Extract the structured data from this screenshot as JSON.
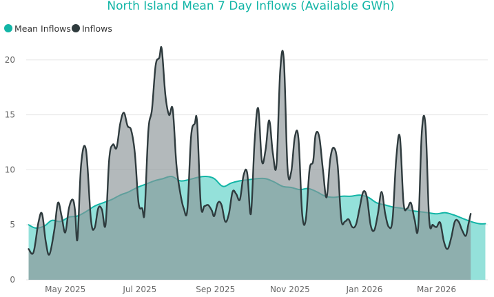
{
  "chart_data": {
    "type": "area",
    "title": "North Island Mean 7 Day Inflows (Available GWh)",
    "xlabel": "",
    "ylabel": "",
    "ylim": [
      0,
      22
    ],
    "yticks": [
      0,
      5,
      10,
      15,
      20
    ],
    "xlim": [
      "2025-03-30",
      "2026-04-12"
    ],
    "x_ticks": [
      {
        "date": "2025-05-01",
        "label": "May 2025"
      },
      {
        "date": "2025-07-01",
        "label": "Jul 2025"
      },
      {
        "date": "2025-09-01",
        "label": "Sep 2025"
      },
      {
        "date": "2025-11-01",
        "label": "Nov 2025"
      },
      {
        "date": "2026-01-01",
        "label": "Jan 2026"
      },
      {
        "date": "2026-03-01",
        "label": "Mar 2026"
      }
    ],
    "grid": true,
    "legend_position": "top-left",
    "series": [
      {
        "name": "Mean Inflows",
        "fill": "#8EDFD8",
        "stroke": "#12B5A6",
        "points": [
          [
            "2025-04-01",
            5.0
          ],
          [
            "2025-04-07",
            4.7
          ],
          [
            "2025-04-14",
            4.9
          ],
          [
            "2025-04-20",
            5.4
          ],
          [
            "2025-04-27",
            5.3
          ],
          [
            "2025-05-04",
            5.7
          ],
          [
            "2025-05-11",
            5.8
          ],
          [
            "2025-05-18",
            6.2
          ],
          [
            "2025-05-25",
            6.7
          ],
          [
            "2025-06-01",
            7.0
          ],
          [
            "2025-06-08",
            7.3
          ],
          [
            "2025-06-15",
            7.7
          ],
          [
            "2025-06-22",
            8.0
          ],
          [
            "2025-06-29",
            8.4
          ],
          [
            "2025-07-06",
            8.7
          ],
          [
            "2025-07-13",
            9.0
          ],
          [
            "2025-07-20",
            9.2
          ],
          [
            "2025-07-27",
            9.4
          ],
          [
            "2025-08-03",
            9.0
          ],
          [
            "2025-08-10",
            9.1
          ],
          [
            "2025-08-17",
            9.3
          ],
          [
            "2025-08-24",
            9.4
          ],
          [
            "2025-08-31",
            9.2
          ],
          [
            "2025-09-07",
            8.5
          ],
          [
            "2025-09-14",
            8.8
          ],
          [
            "2025-09-21",
            9.0
          ],
          [
            "2025-09-28",
            9.1
          ],
          [
            "2025-10-05",
            9.2
          ],
          [
            "2025-10-12",
            9.2
          ],
          [
            "2025-10-19",
            8.9
          ],
          [
            "2025-10-26",
            8.5
          ],
          [
            "2025-11-02",
            8.4
          ],
          [
            "2025-11-09",
            8.2
          ],
          [
            "2025-11-16",
            8.3
          ],
          [
            "2025-11-23",
            8.0
          ],
          [
            "2025-11-30",
            7.6
          ],
          [
            "2025-12-07",
            7.5
          ],
          [
            "2025-12-14",
            7.6
          ],
          [
            "2025-12-21",
            7.6
          ],
          [
            "2025-12-28",
            7.7
          ],
          [
            "2026-01-04",
            7.5
          ],
          [
            "2026-01-11",
            7.0
          ],
          [
            "2026-01-18",
            6.8
          ],
          [
            "2026-01-25",
            6.6
          ],
          [
            "2026-02-01",
            6.5
          ],
          [
            "2026-02-08",
            6.3
          ],
          [
            "2026-02-15",
            6.2
          ],
          [
            "2026-02-22",
            6.1
          ],
          [
            "2026-03-01",
            6.0
          ],
          [
            "2026-03-08",
            6.1
          ],
          [
            "2026-03-15",
            5.9
          ],
          [
            "2026-03-22",
            5.6
          ],
          [
            "2026-03-29",
            5.3
          ],
          [
            "2026-04-05",
            5.1
          ],
          [
            "2026-04-10",
            5.1
          ]
        ]
      },
      {
        "name": "Inflows",
        "fill": "#8A9497",
        "stroke": "#2F3B3E",
        "points": [
          [
            "2025-04-01",
            2.8
          ],
          [
            "2025-04-05",
            2.5
          ],
          [
            "2025-04-09",
            5.2
          ],
          [
            "2025-04-12",
            6.0
          ],
          [
            "2025-04-15",
            3.5
          ],
          [
            "2025-04-18",
            2.3
          ],
          [
            "2025-04-22",
            4.5
          ],
          [
            "2025-04-25",
            7.0
          ],
          [
            "2025-04-28",
            5.8
          ],
          [
            "2025-05-01",
            4.3
          ],
          [
            "2025-05-04",
            6.5
          ],
          [
            "2025-05-07",
            7.3
          ],
          [
            "2025-05-09",
            6.3
          ],
          [
            "2025-05-11",
            3.7
          ],
          [
            "2025-05-14",
            10.5
          ],
          [
            "2025-05-18",
            11.8
          ],
          [
            "2025-05-22",
            5.5
          ],
          [
            "2025-05-25",
            4.7
          ],
          [
            "2025-05-28",
            6.5
          ],
          [
            "2025-05-31",
            6.4
          ],
          [
            "2025-06-03",
            5.0
          ],
          [
            "2025-06-06",
            11.0
          ],
          [
            "2025-06-09",
            12.3
          ],
          [
            "2025-06-12",
            12.0
          ],
          [
            "2025-06-15",
            14.2
          ],
          [
            "2025-06-18",
            15.2
          ],
          [
            "2025-06-21",
            14.0
          ],
          [
            "2025-06-24",
            13.6
          ],
          [
            "2025-06-27",
            11.5
          ],
          [
            "2025-06-30",
            7.0
          ],
          [
            "2025-07-03",
            6.5
          ],
          [
            "2025-07-05",
            6.2
          ],
          [
            "2025-07-08",
            13.5
          ],
          [
            "2025-07-11",
            15.5
          ],
          [
            "2025-07-14",
            19.5
          ],
          [
            "2025-07-17",
            20.2
          ],
          [
            "2025-07-19",
            21.0
          ],
          [
            "2025-07-22",
            16.8
          ],
          [
            "2025-07-25",
            15.0
          ],
          [
            "2025-07-28",
            15.5
          ],
          [
            "2025-07-31",
            10.5
          ],
          [
            "2025-08-03",
            8.0
          ],
          [
            "2025-08-06",
            6.5
          ],
          [
            "2025-08-09",
            6.4
          ],
          [
            "2025-08-12",
            13.0
          ],
          [
            "2025-08-15",
            14.2
          ],
          [
            "2025-08-17",
            14.3
          ],
          [
            "2025-08-20",
            6.8
          ],
          [
            "2025-08-23",
            6.7
          ],
          [
            "2025-08-26",
            6.8
          ],
          [
            "2025-08-29",
            6.3
          ],
          [
            "2025-08-31",
            5.8
          ],
          [
            "2025-09-03",
            7.0
          ],
          [
            "2025-09-06",
            6.8
          ],
          [
            "2025-09-09",
            5.3
          ],
          [
            "2025-09-12",
            6.0
          ],
          [
            "2025-09-15",
            8.0
          ],
          [
            "2025-09-18",
            7.8
          ],
          [
            "2025-09-21",
            7.3
          ],
          [
            "2025-09-24",
            9.5
          ],
          [
            "2025-09-27",
            9.7
          ],
          [
            "2025-09-30",
            6.0
          ],
          [
            "2025-10-03",
            12.5
          ],
          [
            "2025-10-06",
            15.6
          ],
          [
            "2025-10-09",
            10.8
          ],
          [
            "2025-10-12",
            11.8
          ],
          [
            "2025-10-15",
            14.5
          ],
          [
            "2025-10-18",
            11.5
          ],
          [
            "2025-10-21",
            10.5
          ],
          [
            "2025-10-24",
            19.0
          ],
          [
            "2025-10-27",
            20.0
          ],
          [
            "2025-10-30",
            10.2
          ],
          [
            "2025-11-02",
            9.8
          ],
          [
            "2025-11-05",
            13.0
          ],
          [
            "2025-11-08",
            12.8
          ],
          [
            "2025-11-11",
            6.0
          ],
          [
            "2025-11-14",
            5.5
          ],
          [
            "2025-11-17",
            10.0
          ],
          [
            "2025-11-20",
            10.8
          ],
          [
            "2025-11-22",
            13.2
          ],
          [
            "2025-11-25",
            13.0
          ],
          [
            "2025-11-28",
            10.0
          ],
          [
            "2025-12-01",
            7.5
          ],
          [
            "2025-12-04",
            11.0
          ],
          [
            "2025-12-07",
            12.0
          ],
          [
            "2025-12-10",
            10.5
          ],
          [
            "2025-12-13",
            5.5
          ],
          [
            "2025-12-16",
            5.3
          ],
          [
            "2025-12-19",
            5.5
          ],
          [
            "2025-12-22",
            4.8
          ],
          [
            "2025-12-25",
            5.0
          ],
          [
            "2025-12-28",
            6.5
          ],
          [
            "2025-12-31",
            8.0
          ],
          [
            "2026-01-03",
            7.5
          ],
          [
            "2026-01-06",
            5.0
          ],
          [
            "2026-01-09",
            4.5
          ],
          [
            "2026-01-12",
            6.0
          ],
          [
            "2026-01-15",
            8.0
          ],
          [
            "2026-01-18",
            6.0
          ],
          [
            "2026-01-21",
            4.8
          ],
          [
            "2026-01-24",
            5.5
          ],
          [
            "2026-01-27",
            11.0
          ],
          [
            "2026-01-30",
            13.0
          ],
          [
            "2026-02-02",
            7.0
          ],
          [
            "2026-02-05",
            6.5
          ],
          [
            "2026-02-08",
            7.0
          ],
          [
            "2026-02-11",
            5.5
          ],
          [
            "2026-02-14",
            4.8
          ],
          [
            "2026-02-17",
            13.5
          ],
          [
            "2026-02-20",
            14.0
          ],
          [
            "2026-02-23",
            5.5
          ],
          [
            "2026-02-26",
            5.0
          ],
          [
            "2026-03-01",
            4.8
          ],
          [
            "2026-03-04",
            5.2
          ],
          [
            "2026-03-07",
            3.5
          ],
          [
            "2026-03-10",
            2.8
          ],
          [
            "2026-03-13",
            3.8
          ],
          [
            "2026-03-16",
            5.3
          ],
          [
            "2026-03-19",
            5.3
          ],
          [
            "2026-03-22",
            4.5
          ],
          [
            "2026-03-25",
            4.0
          ],
          [
            "2026-03-27",
            5.0
          ],
          [
            "2026-03-29",
            6.0
          ]
        ]
      }
    ]
  }
}
